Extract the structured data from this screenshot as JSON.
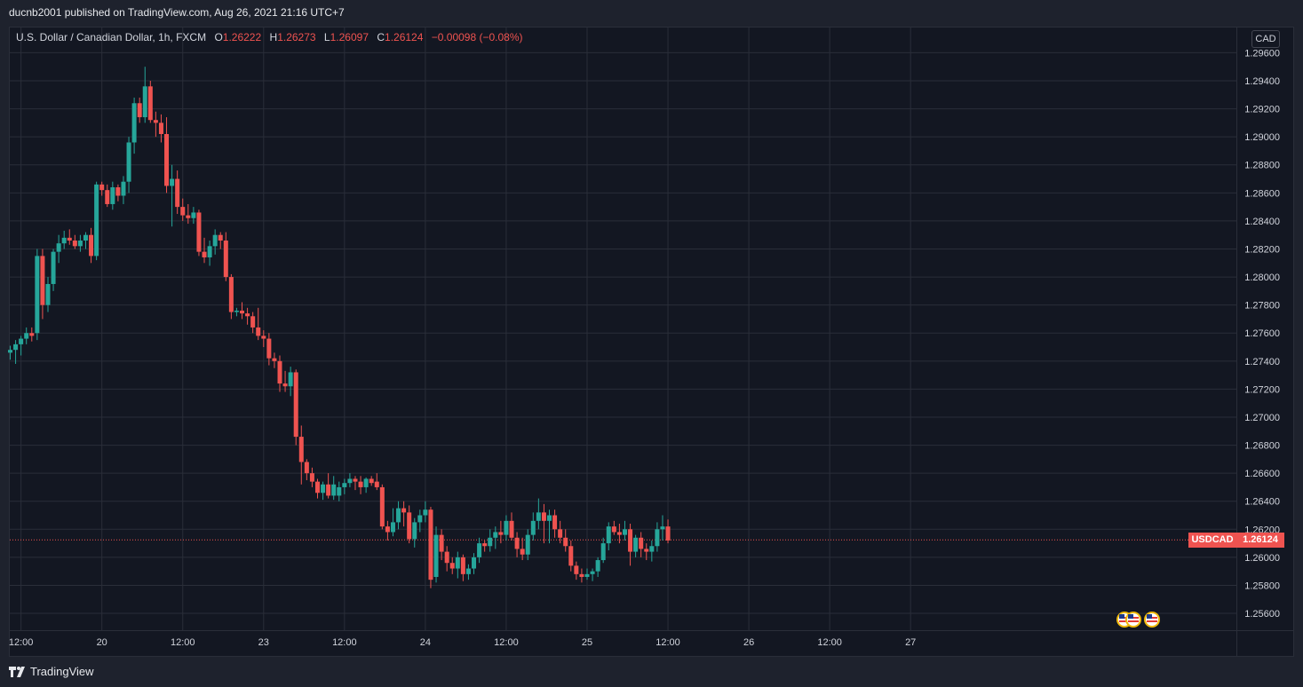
{
  "header": {
    "publisher_text": "ducnb2001 published on TradingView.com, Aug 26, 2021 21:16 UTC+7"
  },
  "legend": {
    "symbol": "U.S. Dollar / Canadian Dollar, 1h, FXCM",
    "o_label": "O",
    "o_value": "1.26222",
    "h_label": "H",
    "h_value": "1.26273",
    "l_label": "L",
    "l_value": "1.26097",
    "c_label": "C",
    "c_value": "1.26124",
    "change": "−0.00098 (−0.08%)"
  },
  "currency_badge": "CAD",
  "price_tags": {
    "symbol": "USDCAD",
    "price": "1.26124"
  },
  "footer": {
    "brand": "TradingView"
  },
  "colors": {
    "up": "#26a69a",
    "down": "#ef5350",
    "background": "#131722",
    "grid": "#2a2e39"
  },
  "chart_data": {
    "type": "candlestick",
    "symbol": "USDCAD",
    "interval": "1h",
    "ylim": [
      1.2548,
      1.2978
    ],
    "y_ticks": [
      "1.29600",
      "1.29400",
      "1.29200",
      "1.29000",
      "1.28800",
      "1.28600",
      "1.28400",
      "1.28200",
      "1.28000",
      "1.27800",
      "1.27600",
      "1.27400",
      "1.27200",
      "1.27000",
      "1.26800",
      "1.26600",
      "1.26400",
      "1.26200",
      "1.26000",
      "1.25800",
      "1.25600"
    ],
    "x_ticks": [
      {
        "label": "12:00",
        "index": 2
      },
      {
        "label": "20",
        "index": 17
      },
      {
        "label": "12:00",
        "index": 32
      },
      {
        "label": "23",
        "index": 47
      },
      {
        "label": "12:00",
        "index": 62
      },
      {
        "label": "24",
        "index": 77
      },
      {
        "label": "12:00",
        "index": 92
      },
      {
        "label": "25",
        "index": 107
      },
      {
        "label": "12:00",
        "index": 122
      },
      {
        "label": "26",
        "index": 137
      },
      {
        "label": "12:00",
        "index": 152
      },
      {
        "label": "27",
        "index": 167
      }
    ],
    "last_price": 1.26124,
    "candles": [
      [
        1.2746,
        1.2751,
        1.2741,
        1.2748
      ],
      [
        1.2748,
        1.2755,
        1.2738,
        1.2752
      ],
      [
        1.2752,
        1.2758,
        1.2744,
        1.2756
      ],
      [
        1.2756,
        1.2764,
        1.2752,
        1.276
      ],
      [
        1.276,
        1.2764,
        1.2754,
        1.2758
      ],
      [
        1.276,
        1.282,
        1.2755,
        1.2815
      ],
      [
        1.2815,
        1.282,
        1.277,
        1.278
      ],
      [
        1.278,
        1.28,
        1.2775,
        1.2795
      ],
      [
        1.2795,
        1.282,
        1.279,
        1.2818
      ],
      [
        1.2818,
        1.283,
        1.281,
        1.2824
      ],
      [
        1.2824,
        1.2833,
        1.282,
        1.2828
      ],
      [
        1.2828,
        1.2834,
        1.2823,
        1.2826
      ],
      [
        1.2826,
        1.283,
        1.282,
        1.2822
      ],
      [
        1.2822,
        1.283,
        1.2818,
        1.2826
      ],
      [
        1.2826,
        1.2832,
        1.282,
        1.283
      ],
      [
        1.283,
        1.2835,
        1.281,
        1.2815
      ],
      [
        1.2815,
        1.2868,
        1.2812,
        1.2866
      ],
      [
        1.2866,
        1.2868,
        1.2858,
        1.2862
      ],
      [
        1.2862,
        1.2866,
        1.285,
        1.2852
      ],
      [
        1.2852,
        1.2868,
        1.2848,
        1.2864
      ],
      [
        1.2864,
        1.2866,
        1.2854,
        1.2858
      ],
      [
        1.2858,
        1.2872,
        1.2852,
        1.2868
      ],
      [
        1.2868,
        1.29,
        1.286,
        1.2896
      ],
      [
        1.2896,
        1.2928,
        1.2888,
        1.2924
      ],
      [
        1.2924,
        1.2928,
        1.291,
        1.2914
      ],
      [
        1.2914,
        1.295,
        1.291,
        1.2936
      ],
      [
        1.2936,
        1.294,
        1.291,
        1.2912
      ],
      [
        1.2912,
        1.2918,
        1.29,
        1.291
      ],
      [
        1.291,
        1.2916,
        1.2896,
        1.2902
      ],
      [
        1.2902,
        1.2914,
        1.286,
        1.2865
      ],
      [
        1.2865,
        1.288,
        1.2836,
        1.287
      ],
      [
        1.287,
        1.2876,
        1.2845,
        1.285
      ],
      [
        1.285,
        1.2856,
        1.284,
        1.2844
      ],
      [
        1.2844,
        1.2852,
        1.2838,
        1.2842
      ],
      [
        1.2842,
        1.285,
        1.2838,
        1.2846
      ],
      [
        1.2846,
        1.2848,
        1.2815,
        1.2818
      ],
      [
        1.2818,
        1.2828,
        1.281,
        1.2814
      ],
      [
        1.2814,
        1.2826,
        1.2808,
        1.2822
      ],
      [
        1.2822,
        1.2834,
        1.2816,
        1.283
      ],
      [
        1.283,
        1.2832,
        1.282,
        1.2826
      ],
      [
        1.2826,
        1.2832,
        1.2797,
        1.28
      ],
      [
        1.28,
        1.2802,
        1.277,
        1.2775
      ],
      [
        1.2775,
        1.2778,
        1.2772,
        1.2776
      ],
      [
        1.2776,
        1.2782,
        1.277,
        1.2774
      ],
      [
        1.2774,
        1.2778,
        1.2766,
        1.2772
      ],
      [
        1.2772,
        1.2775,
        1.276,
        1.2764
      ],
      [
        1.2764,
        1.2778,
        1.2755,
        1.2758
      ],
      [
        1.2758,
        1.2762,
        1.275,
        1.2756
      ],
      [
        1.2756,
        1.276,
        1.2737,
        1.2742
      ],
      [
        1.2742,
        1.2746,
        1.2735,
        1.274
      ],
      [
        1.274,
        1.2744,
        1.2718,
        1.2724
      ],
      [
        1.2724,
        1.2733,
        1.2718,
        1.2722
      ],
      [
        1.2722,
        1.2736,
        1.2715,
        1.2732
      ],
      [
        1.2732,
        1.2734,
        1.268,
        1.2686
      ],
      [
        1.2686,
        1.2694,
        1.2652,
        1.2668
      ],
      [
        1.2668,
        1.267,
        1.2655,
        1.266
      ],
      [
        1.266,
        1.2664,
        1.265,
        1.2654
      ],
      [
        1.2654,
        1.2656,
        1.2642,
        1.2646
      ],
      [
        1.2646,
        1.2654,
        1.2641,
        1.2652
      ],
      [
        1.2652,
        1.266,
        1.2642,
        1.2644
      ],
      [
        1.2644,
        1.2658,
        1.2641,
        1.2652
      ],
      [
        1.2644,
        1.2654,
        1.264,
        1.265
      ],
      [
        1.265,
        1.2656,
        1.2645,
        1.2653
      ],
      [
        1.2653,
        1.266,
        1.265,
        1.2656
      ],
      [
        1.2656,
        1.2658,
        1.2648,
        1.2654
      ],
      [
        1.2654,
        1.2658,
        1.2645,
        1.265
      ],
      [
        1.265,
        1.2657,
        1.2646,
        1.2656
      ],
      [
        1.2656,
        1.2658,
        1.2651,
        1.2653
      ],
      [
        1.2654,
        1.266,
        1.2648,
        1.265
      ],
      [
        1.265,
        1.2652,
        1.262,
        1.2622
      ],
      [
        1.2622,
        1.2626,
        1.2612,
        1.2618
      ],
      [
        1.2618,
        1.2635,
        1.2615,
        1.2625
      ],
      [
        1.2625,
        1.264,
        1.262,
        1.2635
      ],
      [
        1.2635,
        1.264,
        1.2622,
        1.2632
      ],
      [
        1.2632,
        1.2637,
        1.261,
        1.2613
      ],
      [
        1.2613,
        1.2628,
        1.2607,
        1.2625
      ],
      [
        1.2625,
        1.2634,
        1.2618,
        1.263
      ],
      [
        1.263,
        1.264,
        1.2625,
        1.2634
      ],
      [
        1.2634,
        1.2636,
        1.2578,
        1.2584
      ],
      [
        1.2586,
        1.2622,
        1.2582,
        1.2616
      ],
      [
        1.2616,
        1.262,
        1.2598,
        1.2604
      ],
      [
        1.2604,
        1.2608,
        1.259,
        1.2596
      ],
      [
        1.2596,
        1.26,
        1.2588,
        1.2592
      ],
      [
        1.2592,
        1.2604,
        1.2585,
        1.26
      ],
      [
        1.26,
        1.2602,
        1.2583,
        1.2588
      ],
      [
        1.2588,
        1.2595,
        1.2584,
        1.2592
      ],
      [
        1.2592,
        1.2603,
        1.2588,
        1.26
      ],
      [
        1.26,
        1.2614,
        1.2596,
        1.261
      ],
      [
        1.261,
        1.2612,
        1.2604,
        1.2608
      ],
      [
        1.2608,
        1.262,
        1.2604,
        1.2614
      ],
      [
        1.2614,
        1.2622,
        1.2606,
        1.2618
      ],
      [
        1.2618,
        1.2626,
        1.261,
        1.2616
      ],
      [
        1.2616,
        1.263,
        1.2612,
        1.2626
      ],
      [
        1.2626,
        1.2632,
        1.2612,
        1.2614
      ],
      [
        1.2614,
        1.2618,
        1.26,
        1.2606
      ],
      [
        1.2606,
        1.2614,
        1.2598,
        1.2602
      ],
      [
        1.2602,
        1.262,
        1.2598,
        1.2616
      ],
      [
        1.2616,
        1.2632,
        1.2612,
        1.2626
      ],
      [
        1.2626,
        1.2642,
        1.262,
        1.2632
      ],
      [
        1.2632,
        1.2638,
        1.261,
        1.2626
      ],
      [
        1.2626,
        1.2634,
        1.261,
        1.263
      ],
      [
        1.263,
        1.2634,
        1.2614,
        1.262
      ],
      [
        1.262,
        1.2626,
        1.261,
        1.2614
      ],
      [
        1.2614,
        1.262,
        1.2604,
        1.2608
      ],
      [
        1.2608,
        1.2612,
        1.259,
        1.2594
      ],
      [
        1.2594,
        1.2597,
        1.2584,
        1.2588
      ],
      [
        1.2588,
        1.2592,
        1.2582,
        1.2586
      ],
      [
        1.2586,
        1.2592,
        1.2584,
        1.2588
      ],
      [
        1.2588,
        1.2592,
        1.2583,
        1.259
      ],
      [
        1.259,
        1.26,
        1.2586,
        1.2598
      ],
      [
        1.2598,
        1.2614,
        1.2596,
        1.261
      ],
      [
        1.261,
        1.2625,
        1.2605,
        1.2622
      ],
      [
        1.2622,
        1.2626,
        1.2616,
        1.2618
      ],
      [
        1.2618,
        1.2624,
        1.261,
        1.2616
      ],
      [
        1.2616,
        1.2626,
        1.2612,
        1.262
      ],
      [
        1.262,
        1.2624,
        1.2594,
        1.2604
      ],
      [
        1.2604,
        1.2616,
        1.26,
        1.2614
      ],
      [
        1.2614,
        1.2618,
        1.26,
        1.2606
      ],
      [
        1.2606,
        1.261,
        1.2598,
        1.2604
      ],
      [
        1.2604,
        1.2612,
        1.2597,
        1.2608
      ],
      [
        1.2608,
        1.2625,
        1.2604,
        1.262
      ],
      [
        1.262,
        1.263,
        1.2612,
        1.2622
      ],
      [
        1.2622,
        1.2627,
        1.261,
        1.2612
      ]
    ]
  }
}
